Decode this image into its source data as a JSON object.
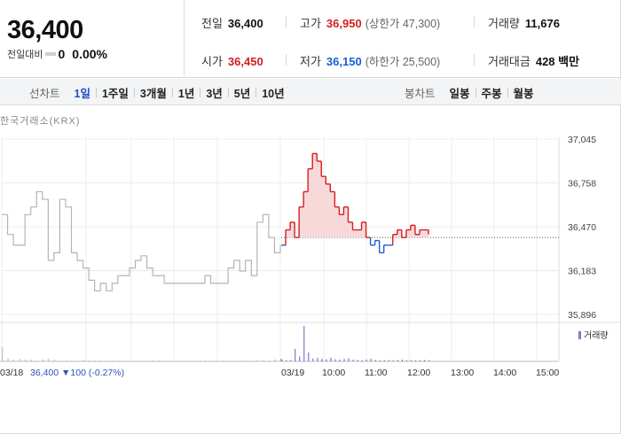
{
  "summary": {
    "current_price": "36,400",
    "change_label": "전일대비",
    "change_value": "0",
    "change_rate": "0.00%"
  },
  "stats": {
    "prev_close": {
      "label": "전일",
      "value": "36,400"
    },
    "high": {
      "label": "고가",
      "value": "36,950",
      "sub": "(상한가 47,300)"
    },
    "volume": {
      "label": "거래량",
      "value": "11,676"
    },
    "open": {
      "label": "시가",
      "value": "36,450"
    },
    "low": {
      "label": "저가",
      "value": "36,150",
      "sub": "(하한가 25,500)"
    },
    "trade_amount": {
      "label": "거래대금",
      "value": "428 백만"
    }
  },
  "line_tabs": {
    "head": "선차트",
    "items": [
      "1일",
      "1주일",
      "3개월",
      "1년",
      "3년",
      "5년",
      "10년"
    ],
    "active": "1일"
  },
  "candle_tabs": {
    "head": "봉차트",
    "items": [
      "일봉",
      "주봉",
      "월봉"
    ]
  },
  "colors": {
    "up": "#d61d1d",
    "down": "#1a5dd8",
    "prev_day_line": "#b4b4b4",
    "up_fill": "#f7d2d2",
    "volume_bar": "#8a73c4"
  },
  "chart_data": {
    "type": "line",
    "source_label": "한국거래소(KRX)",
    "ylim": [
      35896,
      37045
    ],
    "y_ticks": [
      "37,045",
      "36,758",
      "36,470",
      "36,183",
      "35,896"
    ],
    "y_tick_values": [
      37045,
      36758,
      36470,
      36183,
      35896
    ],
    "reference_price": 36400,
    "prev_day": {
      "date_label": "03/18",
      "close_text": "36,400",
      "change_text": "▼100 (-0.27%)",
      "values": [
        36550,
        36420,
        36350,
        36350,
        36550,
        36600,
        36700,
        36650,
        36250,
        36300,
        36650,
        36600,
        36300,
        36250,
        36200,
        36120,
        36050,
        36100,
        36050,
        36100,
        36150,
        36150,
        36200,
        36250,
        36280,
        36200,
        36150,
        36150,
        36100,
        36100,
        36100,
        36100,
        36100,
        36100,
        36100,
        36150,
        36100,
        36100,
        36100,
        36200,
        36250,
        36180,
        36250,
        36150,
        36500,
        36550,
        36400,
        36300,
        36350
      ]
    },
    "today": {
      "date_label": "03/19",
      "open": 36450,
      "values": [
        36350,
        36450,
        36500,
        36400,
        36600,
        36700,
        36850,
        36950,
        36900,
        36800,
        36750,
        36700,
        36600,
        36550,
        36600,
        36500,
        36450,
        36450,
        36500,
        36400,
        36350,
        36380,
        36300,
        36350,
        36350,
        36420,
        36450,
        36400,
        36450,
        36480,
        36420,
        36450,
        36450,
        36420
      ]
    },
    "volume_label": "거래량",
    "volume": {
      "prev_day": [
        40,
        10,
        5,
        8,
        5,
        5,
        3,
        6,
        8,
        5,
        2,
        3,
        2,
        2,
        4,
        3,
        2,
        3,
        2,
        2,
        3,
        2,
        2,
        2,
        2,
        2,
        3,
        2,
        2,
        2,
        2,
        2,
        2,
        2,
        2,
        3,
        2,
        2,
        2,
        2,
        2,
        2,
        3,
        2,
        3,
        4,
        3,
        6,
        8
      ],
      "today": [
        6,
        3,
        4,
        35,
        14,
        100,
        25,
        8,
        10,
        7,
        6,
        10,
        6,
        5,
        7,
        9,
        5,
        4,
        3,
        5,
        7,
        4,
        3,
        3,
        4,
        3,
        4,
        5,
        3,
        4,
        3,
        3,
        4,
        3
      ]
    },
    "x_ticks": [
      "03/18",
      "03/19",
      "10:00",
      "11:00",
      "12:00",
      "13:00",
      "14:00",
      "15:00"
    ]
  }
}
